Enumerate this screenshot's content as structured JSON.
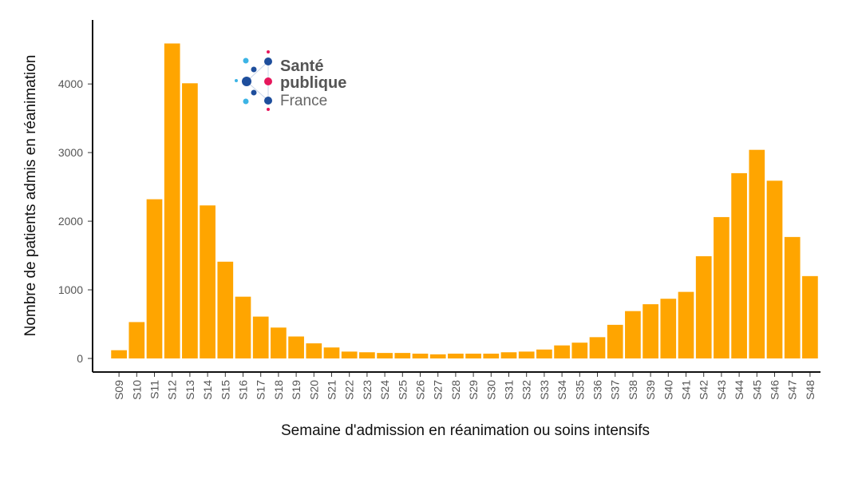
{
  "chart_data": {
    "type": "bar",
    "title": "",
    "xlabel": "Semaine d'admission en réanimation ou soins intensifs",
    "ylabel": "Nombre de patients admis en réanimation",
    "ylim": [
      0,
      4700
    ],
    "yticks": [
      0,
      1000,
      2000,
      3000,
      4000
    ],
    "grid": false,
    "bar_color": "#FFA500",
    "categories": [
      "S09",
      "S10",
      "S11",
      "S12",
      "S13",
      "S14",
      "S15",
      "S16",
      "S17",
      "S18",
      "S19",
      "S20",
      "S21",
      "S22",
      "S23",
      "S24",
      "S25",
      "S26",
      "S27",
      "S28",
      "S29",
      "S30",
      "S31",
      "S32",
      "S33",
      "S34",
      "S35",
      "S36",
      "S37",
      "S38",
      "S39",
      "S40",
      "S41",
      "S42",
      "S43",
      "S44",
      "S45",
      "S46",
      "S47",
      "S48"
    ],
    "values": [
      120,
      530,
      2320,
      4590,
      4010,
      2230,
      1410,
      900,
      610,
      450,
      320,
      220,
      160,
      100,
      90,
      80,
      80,
      70,
      60,
      70,
      70,
      70,
      90,
      100,
      130,
      190,
      230,
      310,
      490,
      690,
      790,
      870,
      970,
      1490,
      2060,
      2700,
      3040,
      2590,
      1770,
      1200
    ]
  },
  "logo": {
    "line1": "Santé",
    "line2": "publique",
    "line3": "France",
    "dark_blue": "#1E4E9C",
    "light_blue": "#3CB4E5",
    "pink": "#E6175C",
    "text_color": "#555555"
  }
}
